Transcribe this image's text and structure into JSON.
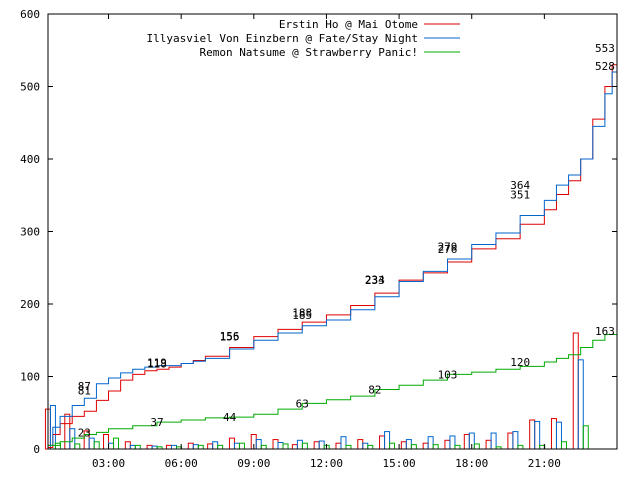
{
  "chart_data": {
    "type": "line",
    "title": "",
    "xlabel": "",
    "ylabel": "",
    "x_range_hours": [
      0.5,
      24
    ],
    "ylim": [
      0,
      600
    ],
    "x_ticks": [
      {
        "hour": 3,
        "label": "03:00"
      },
      {
        "hour": 6,
        "label": "06:00"
      },
      {
        "hour": 9,
        "label": "09:00"
      },
      {
        "hour": 12,
        "label": "12:00"
      },
      {
        "hour": 15,
        "label": "15:00"
      },
      {
        "hour": 18,
        "label": "18:00"
      },
      {
        "hour": 21,
        "label": "21:00"
      }
    ],
    "y_ticks": [
      0,
      100,
      200,
      300,
      400,
      500,
      600
    ],
    "grid": false,
    "legend_position": "top-right",
    "series": [
      {
        "name": "Erstin Ho @ Mai Otome",
        "color": "#dd0000",
        "cumulative": [
          [
            0.5,
            2
          ],
          [
            0.7,
            20
          ],
          [
            1.0,
            35
          ],
          [
            1.5,
            45
          ],
          [
            2.0,
            52
          ],
          [
            2.5,
            67
          ],
          [
            3.0,
            80
          ],
          [
            3.5,
            95
          ],
          [
            4.0,
            103
          ],
          [
            4.5,
            108
          ],
          [
            5.0,
            110
          ],
          [
            5.5,
            113
          ],
          [
            6.0,
            118
          ],
          [
            6.5,
            122
          ],
          [
            7.0,
            128
          ],
          [
            8.0,
            140
          ],
          [
            9.0,
            155
          ],
          [
            10.0,
            165
          ],
          [
            11.0,
            175
          ],
          [
            12.0,
            185
          ],
          [
            13.0,
            198
          ],
          [
            14.0,
            215
          ],
          [
            15.0,
            233
          ],
          [
            16.0,
            243
          ],
          [
            17.0,
            258
          ],
          [
            18.0,
            276
          ],
          [
            19.0,
            290
          ],
          [
            20.0,
            310
          ],
          [
            21.0,
            330
          ],
          [
            21.5,
            351
          ],
          [
            22.0,
            370
          ],
          [
            22.5,
            400
          ],
          [
            23.0,
            455
          ],
          [
            23.5,
            500
          ],
          [
            23.8,
            530
          ],
          [
            24.0,
            553
          ]
        ],
        "labels": [
          {
            "hour": 2.0,
            "value": 81
          },
          {
            "hour": 5.0,
            "value": 118
          },
          {
            "hour": 8.0,
            "value": 155
          },
          {
            "hour": 11.0,
            "value": 185
          },
          {
            "hour": 14.0,
            "value": 233
          },
          {
            "hour": 17.0,
            "value": 276
          },
          {
            "hour": 20.0,
            "value": 351
          },
          {
            "hour": 23.5,
            "value": 553
          }
        ],
        "hourly": [
          [
            0.6,
            55
          ],
          [
            1.4,
            48
          ],
          [
            2.2,
            25
          ],
          [
            3.0,
            20
          ],
          [
            3.9,
            10
          ],
          [
            4.8,
            5
          ],
          [
            5.6,
            5
          ],
          [
            6.5,
            8
          ],
          [
            7.3,
            7
          ],
          [
            8.2,
            15
          ],
          [
            9.1,
            20
          ],
          [
            10.0,
            13
          ],
          [
            10.8,
            6
          ],
          [
            11.7,
            10
          ],
          [
            12.6,
            8
          ],
          [
            13.5,
            13
          ],
          [
            14.4,
            18
          ],
          [
            15.3,
            10
          ],
          [
            16.2,
            8
          ],
          [
            17.1,
            12
          ],
          [
            17.9,
            20
          ],
          [
            18.8,
            12
          ],
          [
            19.7,
            22
          ],
          [
            20.6,
            40
          ],
          [
            21.5,
            42
          ],
          [
            22.4,
            160
          ]
        ]
      },
      {
        "name": "Illyasviel Von Einzbern @ Fate/Stay Night",
        "color": "#0066cc",
        "cumulative": [
          [
            0.5,
            5
          ],
          [
            0.7,
            30
          ],
          [
            1.0,
            45
          ],
          [
            1.5,
            60
          ],
          [
            2.0,
            70
          ],
          [
            2.5,
            90
          ],
          [
            3.0,
            98
          ],
          [
            3.5,
            105
          ],
          [
            4.0,
            110
          ],
          [
            4.5,
            113
          ],
          [
            5.0,
            115
          ],
          [
            6.0,
            118
          ],
          [
            6.5,
            121
          ],
          [
            7.0,
            125
          ],
          [
            8.0,
            138
          ],
          [
            9.0,
            150
          ],
          [
            10.0,
            160
          ],
          [
            11.0,
            170
          ],
          [
            12.0,
            178
          ],
          [
            13.0,
            192
          ],
          [
            14.0,
            210
          ],
          [
            15.0,
            231
          ],
          [
            16.0,
            245
          ],
          [
            17.0,
            262
          ],
          [
            18.0,
            282
          ],
          [
            19.0,
            298
          ],
          [
            20.0,
            322
          ],
          [
            21.0,
            343
          ],
          [
            21.5,
            364
          ],
          [
            22.0,
            378
          ],
          [
            22.5,
            400
          ],
          [
            23.0,
            445
          ],
          [
            23.5,
            490
          ],
          [
            23.8,
            520
          ],
          [
            24.0,
            528
          ]
        ],
        "labels": [
          {
            "hour": 2.0,
            "value": 87
          },
          {
            "hour": 5.0,
            "value": 119
          },
          {
            "hour": 8.0,
            "value": 156
          },
          {
            "hour": 11.0,
            "value": 188
          },
          {
            "hour": 14.0,
            "value": 234
          },
          {
            "hour": 17.0,
            "value": 279
          },
          {
            "hour": 20.0,
            "value": 364
          },
          {
            "hour": 23.5,
            "value": 528
          }
        ],
        "hourly": [
          [
            0.6,
            60
          ],
          [
            1.4,
            28
          ],
          [
            2.2,
            15
          ],
          [
            3.0,
            8
          ],
          [
            3.9,
            5
          ],
          [
            4.8,
            4
          ],
          [
            5.6,
            5
          ],
          [
            6.5,
            6
          ],
          [
            7.3,
            10
          ],
          [
            8.2,
            8
          ],
          [
            9.1,
            13
          ],
          [
            10.0,
            9
          ],
          [
            10.8,
            12
          ],
          [
            11.7,
            11
          ],
          [
            12.6,
            17
          ],
          [
            13.5,
            8
          ],
          [
            14.4,
            24
          ],
          [
            15.3,
            13
          ],
          [
            16.2,
            17
          ],
          [
            17.1,
            18
          ],
          [
            17.9,
            22
          ],
          [
            18.8,
            22
          ],
          [
            19.7,
            24
          ],
          [
            20.6,
            38
          ],
          [
            21.5,
            37
          ],
          [
            22.4,
            123
          ]
        ]
      },
      {
        "name": "Remon Natsume @ Strawberry Panic!",
        "color": "#00aa00",
        "cumulative": [
          [
            0.5,
            5
          ],
          [
            1.0,
            10
          ],
          [
            1.5,
            15
          ],
          [
            2.0,
            20
          ],
          [
            2.5,
            23
          ],
          [
            3.0,
            28
          ],
          [
            4.0,
            32
          ],
          [
            5.0,
            37
          ],
          [
            6.0,
            40
          ],
          [
            7.0,
            43
          ],
          [
            8.0,
            44
          ],
          [
            9.0,
            48
          ],
          [
            10.0,
            55
          ],
          [
            11.0,
            63
          ],
          [
            12.0,
            68
          ],
          [
            13.0,
            73
          ],
          [
            14.0,
            82
          ],
          [
            15.0,
            88
          ],
          [
            16.0,
            95
          ],
          [
            17.0,
            103
          ],
          [
            18.0,
            106
          ],
          [
            19.0,
            110
          ],
          [
            20.0,
            114
          ],
          [
            21.0,
            120
          ],
          [
            21.5,
            125
          ],
          [
            22.0,
            130
          ],
          [
            22.5,
            140
          ],
          [
            23.0,
            150
          ],
          [
            23.5,
            158
          ],
          [
            24.0,
            163
          ]
        ],
        "labels": [
          {
            "hour": 2.0,
            "value": 23
          },
          {
            "hour": 5.0,
            "value": 37
          },
          {
            "hour": 8.0,
            "value": 44
          },
          {
            "hour": 11.0,
            "value": 63
          },
          {
            "hour": 14.0,
            "value": 82
          },
          {
            "hour": 17.0,
            "value": 103
          },
          {
            "hour": 20.0,
            "value": 120
          },
          {
            "hour": 23.5,
            "value": 163
          }
        ],
        "hourly": [
          [
            0.6,
            8
          ],
          [
            1.4,
            7
          ],
          [
            2.2,
            10
          ],
          [
            3.0,
            15
          ],
          [
            3.9,
            5
          ],
          [
            4.8,
            3
          ],
          [
            5.6,
            3
          ],
          [
            6.5,
            5
          ],
          [
            7.3,
            5
          ],
          [
            8.2,
            8
          ],
          [
            9.1,
            5
          ],
          [
            10.0,
            7
          ],
          [
            10.8,
            8
          ],
          [
            11.7,
            5
          ],
          [
            12.6,
            5
          ],
          [
            13.5,
            5
          ],
          [
            14.4,
            8
          ],
          [
            15.3,
            6
          ],
          [
            16.2,
            6
          ],
          [
            17.1,
            5
          ],
          [
            17.9,
            7
          ],
          [
            18.8,
            3
          ],
          [
            19.7,
            5
          ],
          [
            20.6,
            5
          ],
          [
            21.5,
            10
          ],
          [
            22.4,
            32
          ]
        ]
      }
    ]
  }
}
